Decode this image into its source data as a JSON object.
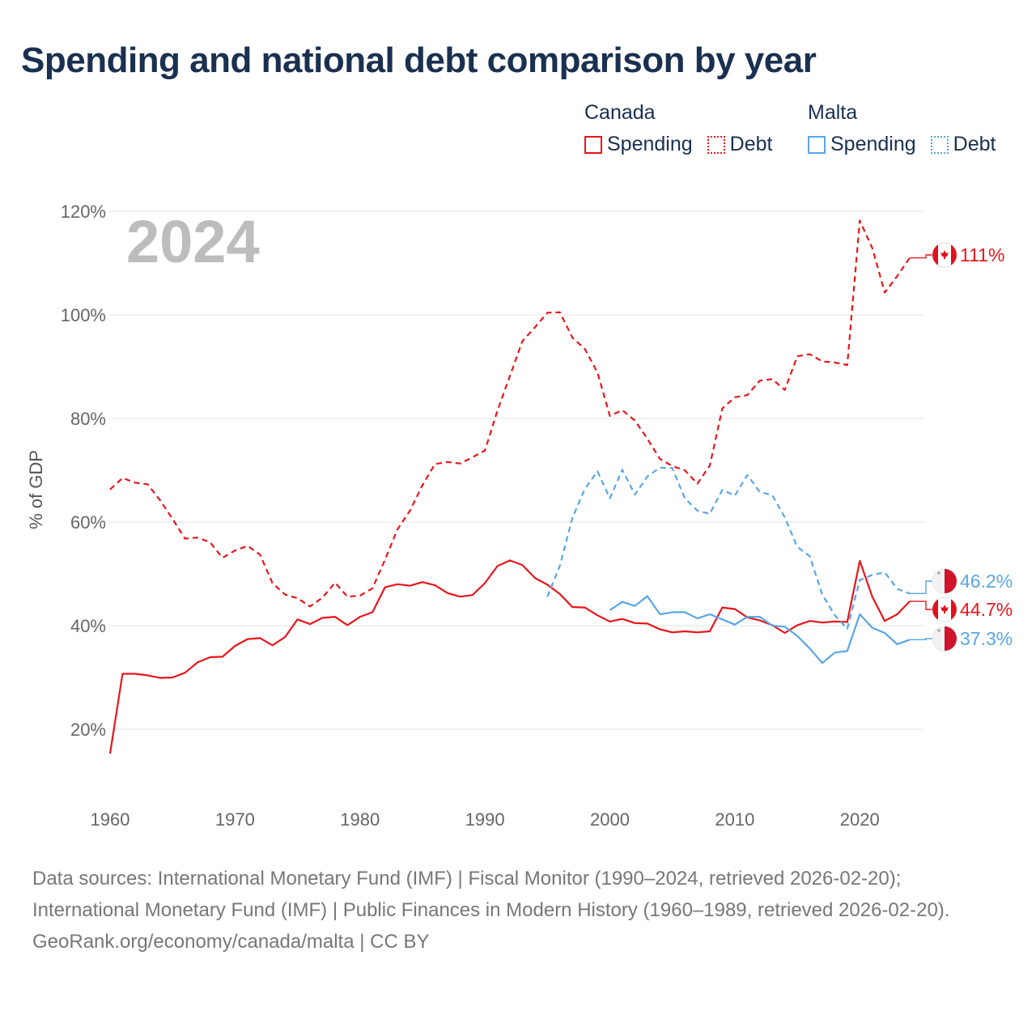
{
  "title": "Spending and national debt comparison by year",
  "legend": {
    "groups": [
      {
        "name": "Canada",
        "color": "#e8161b",
        "items": [
          {
            "label": "Spending",
            "style": "solid"
          },
          {
            "label": "Debt",
            "style": "dotted"
          }
        ]
      },
      {
        "name": "Malta",
        "color": "#5aa6e6",
        "items": [
          {
            "label": "Spending",
            "style": "solid"
          },
          {
            "label": "Debt",
            "style": "dotted"
          }
        ]
      }
    ]
  },
  "footer": {
    "sources": "Data sources: International Monetary Fund (IMF) | Fiscal Monitor (1990–2024, retrieved 2026-02-20); International Monetary Fund (IMF) | Public Finances in Modern History (1960–1989, retrieved 2026-02-20).",
    "credit": "GeoRank.org/economy/canada/malta | CC BY"
  },
  "chart_data": {
    "type": "line",
    "title": "Spending and national debt comparison by year",
    "year_overlay": "2024",
    "xlabel": "",
    "ylabel": "% of GDP",
    "xlim": [
      1960,
      2024
    ],
    "ylim": [
      10,
      120
    ],
    "x_ticks": [
      1960,
      1970,
      1980,
      1990,
      2000,
      2010,
      2020
    ],
    "x_tick_labels": [
      "1960",
      "1970",
      "1980",
      "1990",
      "2000",
      "2010",
      "2020"
    ],
    "y_ticks": [
      20,
      40,
      60,
      80,
      100,
      120
    ],
    "y_tick_labels": [
      "20%",
      "40%",
      "60%",
      "80%",
      "100%",
      "120%"
    ],
    "grid": true,
    "legend_position": "top-right",
    "series": [
      {
        "name": "Canada Spending",
        "country": "Canada",
        "metric": "Spending",
        "color": "#e8161b",
        "dashed": false,
        "start_year": 1960,
        "end_label": "44.7%",
        "values": [
          15.3,
          30.7,
          30.7,
          30.4,
          29.9,
          30.0,
          30.9,
          32.9,
          33.9,
          34.0,
          36.1,
          37.4,
          37.6,
          36.2,
          37.8,
          41.2,
          40.3,
          41.5,
          41.7,
          40.1,
          41.7,
          42.6,
          47.4,
          48.0,
          47.7,
          48.4,
          47.8,
          46.3,
          45.6,
          45.9,
          48.2,
          51.5,
          52.6,
          51.7,
          49.2,
          47.9,
          46.1,
          43.6,
          43.5,
          42.0,
          40.8,
          41.3,
          40.5,
          40.4,
          39.3,
          38.7,
          38.9,
          38.7,
          38.9,
          43.5,
          43.2,
          41.6,
          41.0,
          40.1,
          38.6,
          40.1,
          40.9,
          40.6,
          40.8,
          40.7,
          52.5,
          45.6,
          40.9,
          42.2,
          44.7
        ]
      },
      {
        "name": "Canada Debt",
        "country": "Canada",
        "metric": "Debt",
        "color": "#e8161b",
        "dashed": true,
        "start_year": 1960,
        "end_label": "111%",
        "values": [
          66.3,
          68.5,
          67.6,
          67.3,
          64.2,
          60.6,
          56.8,
          57.0,
          56.1,
          53.1,
          54.5,
          55.4,
          53.7,
          48.2,
          46.0,
          45.3,
          43.7,
          45.4,
          48.3,
          45.6,
          45.8,
          47.2,
          52.7,
          58.6,
          62.2,
          67.1,
          71.2,
          71.6,
          71.3,
          72.5,
          73.8,
          81.5,
          88.2,
          94.9,
          97.6,
          100.4,
          100.5,
          95.6,
          93.4,
          88.9,
          80.5,
          81.6,
          79.6,
          76.1,
          72.2,
          70.8,
          70.0,
          67.4,
          70.9,
          81.9,
          84.1,
          84.5,
          87.3,
          87.6,
          85.5,
          92.0,
          92.4,
          91.0,
          90.8,
          90.3,
          118.2,
          112.9,
          104.3,
          107.5,
          111.0
        ]
      },
      {
        "name": "Malta Spending",
        "country": "Malta",
        "metric": "Spending",
        "color": "#5aa6e6",
        "dashed": false,
        "start_year": 2000,
        "end_label": "37.3%",
        "values": [
          43.0,
          44.6,
          43.8,
          45.7,
          42.2,
          42.6,
          42.6,
          41.4,
          42.2,
          41.2,
          40.2,
          41.7,
          41.7,
          40.0,
          39.8,
          38.0,
          35.6,
          32.8,
          34.8,
          35.1,
          42.2,
          39.6,
          38.6,
          36.4,
          37.3
        ]
      },
      {
        "name": "Malta Debt",
        "country": "Malta",
        "metric": "Debt",
        "color": "#5aa6e6",
        "dashed": true,
        "start_year": 1995,
        "end_label": "46.2%",
        "values": [
          45.6,
          51.6,
          60.8,
          66.4,
          69.8,
          64.6,
          70.1,
          65.3,
          68.8,
          70.5,
          70.4,
          64.6,
          62.2,
          61.6,
          66.2,
          65.1,
          69.1,
          65.8,
          65.2,
          60.9,
          55.2,
          53.4,
          46.0,
          42.0,
          39.4,
          48.8,
          49.8,
          50.3,
          47.1,
          46.2
        ]
      }
    ]
  }
}
